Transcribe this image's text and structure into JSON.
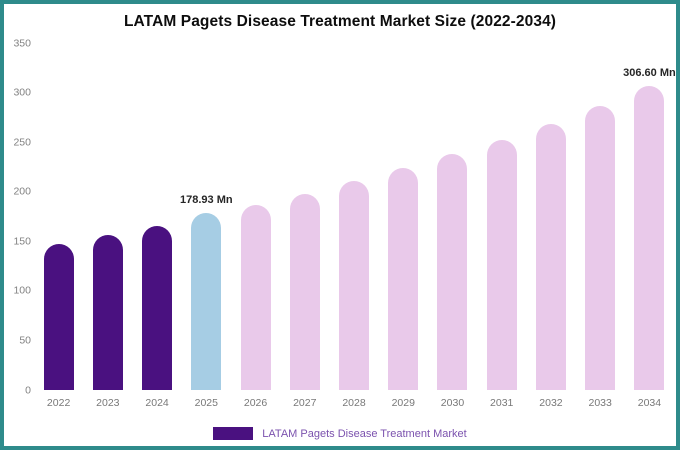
{
  "chart_data": {
    "type": "bar",
    "title": "LATAM Pagets Disease Treatment Market Size (2022-2034)",
    "categories": [
      "2022",
      "2023",
      "2024",
      "2025",
      "2026",
      "2027",
      "2028",
      "2029",
      "2030",
      "2031",
      "2032",
      "2033",
      "2034"
    ],
    "values": [
      147,
      156,
      165,
      178.93,
      187,
      198,
      211,
      224,
      238,
      252,
      268,
      286,
      306.6
    ],
    "unit": "Mn",
    "bar_colors": [
      "#4a1180",
      "#4a1180",
      "#4a1180",
      "#a6cde4",
      "#e9c9ea",
      "#e9c9ea",
      "#e9c9ea",
      "#e9c9ea",
      "#e9c9ea",
      "#e9c9ea",
      "#e9c9ea",
      "#e9c9ea",
      "#e9c9ea"
    ],
    "annotations": [
      {
        "index": 3,
        "text": "178.93 Mn"
      },
      {
        "index": 12,
        "text": "306.60 Mn"
      }
    ],
    "ylim": [
      0,
      350
    ],
    "yticks": [
      0,
      50,
      100,
      150,
      200,
      250,
      300,
      350
    ],
    "grid": false,
    "legend_position": "bottom",
    "legend": [
      {
        "label": "LATAM Pagets Disease Treatment Market",
        "swatch_color": "#4a1180",
        "text_color": "#7b52ae"
      }
    ]
  },
  "colors": {
    "frame_border": "#2e8b8b",
    "background": "#ffffff",
    "axis_text": "#828282",
    "annotation_text": "#262626"
  }
}
